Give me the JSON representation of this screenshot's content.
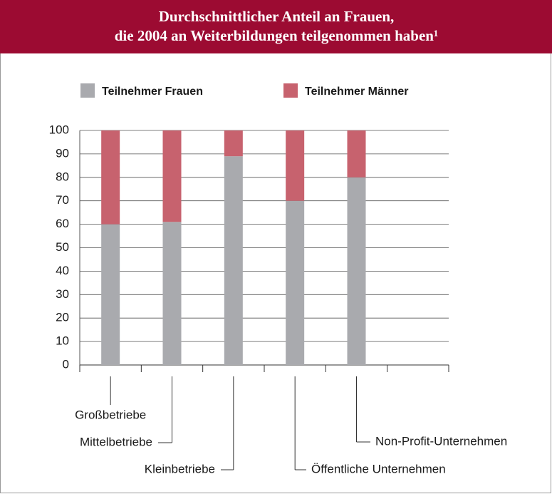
{
  "chart_data": {
    "type": "stacked_bar",
    "title": [
      "Durchschnittlicher Anteil an Frauen,",
      "die 2004 an Weiterbildungen teilgenommen haben¹"
    ],
    "categories": [
      "Großbetriebe",
      "Mittelbetriebe",
      "Kleinbetriebe",
      "Öffentliche Unternehmen",
      "Non-Profit-Unternehmen",
      null
    ],
    "series": [
      {
        "name": "Teilnehmer Frauen",
        "color": "#a9aaae",
        "values": [
          60,
          61,
          89,
          70,
          80,
          null
        ]
      },
      {
        "name": "Teilnehmer Männer",
        "color": "#c7626e",
        "values": [
          40,
          39,
          11,
          30,
          20,
          null
        ]
      }
    ],
    "ylim": [
      0,
      100
    ],
    "yticks": [
      0,
      10,
      20,
      30,
      40,
      50,
      60,
      70,
      80,
      90,
      100
    ],
    "grid": true
  }
}
